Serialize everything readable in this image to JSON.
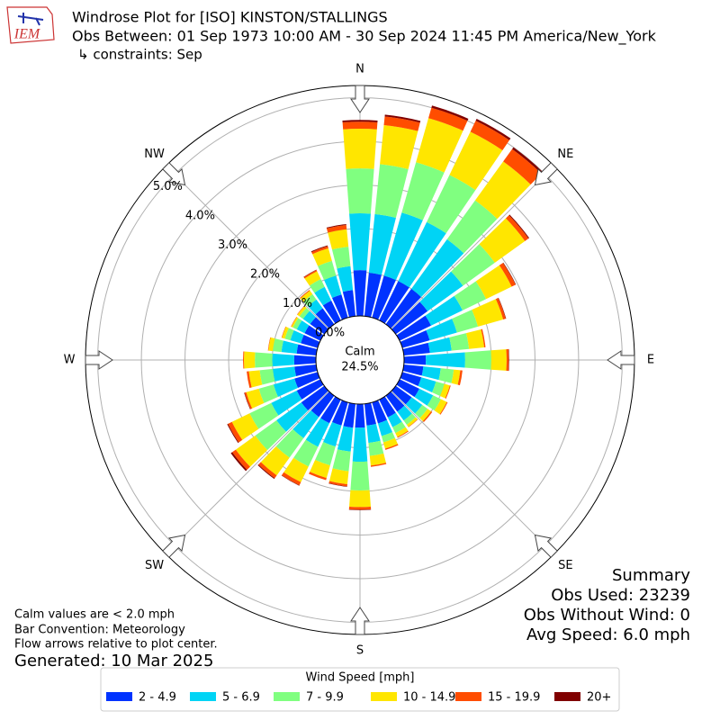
{
  "chart_data": {
    "type": "windrose",
    "logo": "IEM",
    "title": "Windrose Plot for [ISO] KINSTON/STALLINGS",
    "subtitle": "Obs Between: 01 Sep 1973 10:00 AM - 30 Sep 2024 11:45 PM America/New_York",
    "constraints": "↳ constraints: Sep",
    "x": [
      0,
      10,
      20,
      30,
      40,
      50,
      60,
      70,
      80,
      90,
      100,
      110,
      120,
      130,
      140,
      150,
      160,
      170,
      180,
      190,
      200,
      210,
      220,
      230,
      240,
      250,
      260,
      270,
      280,
      290,
      300,
      310,
      320,
      330,
      340,
      350
    ],
    "xticks": [
      {
        "value": 0,
        "label": "N"
      },
      {
        "value": 45,
        "label": "NE"
      },
      {
        "value": 90,
        "label": "E"
      },
      {
        "value": 135,
        "label": "SE"
      },
      {
        "value": 180,
        "label": "S"
      },
      {
        "value": 225,
        "label": "SW"
      },
      {
        "value": 270,
        "label": "W"
      },
      {
        "value": 315,
        "label": "NW"
      }
    ],
    "ylim": [
      0,
      5.28
    ],
    "yticks": [
      {
        "value": 0,
        "label": "0.0%"
      },
      {
        "value": 1,
        "label": "1.0%"
      },
      {
        "value": 2,
        "label": "2.0%"
      },
      {
        "value": 3,
        "label": "3.0%"
      },
      {
        "value": 4,
        "label": "4.0%"
      },
      {
        "value": 5,
        "label": "5.0%"
      }
    ],
    "grid": true,
    "calm": {
      "label": "Calm",
      "value": 24.5,
      "value_label": "24.5%"
    },
    "legend_title": "Wind Speed [mph]",
    "series": [
      {
        "name": "2 - 4.9",
        "color": "#0033ff",
        "values": [
          1.05,
          1.0,
          1.0,
          1.0,
          1.0,
          0.9,
          0.8,
          0.65,
          0.6,
          0.5,
          0.45,
          0.45,
          0.5,
          0.45,
          0.45,
          0.45,
          0.5,
          0.5,
          0.54,
          0.55,
          0.55,
          0.6,
          0.6,
          0.65,
          0.6,
          0.55,
          0.5,
          0.5,
          0.45,
          0.4,
          0.4,
          0.4,
          0.45,
          0.5,
          0.55,
          0.6
        ]
      },
      {
        "name": "5 - 6.9",
        "color": "#00d4f5",
        "values": [
          1.3,
          1.35,
          1.5,
          1.5,
          1.4,
          1.0,
          0.8,
          0.65,
          0.5,
          0.9,
          0.4,
          0.35,
          0.35,
          0.3,
          0.25,
          0.25,
          0.3,
          0.4,
          0.78,
          0.55,
          0.5,
          0.6,
          0.6,
          0.7,
          0.65,
          0.5,
          0.5,
          0.5,
          0.35,
          0.25,
          0.2,
          0.2,
          0.25,
          0.35,
          0.45,
          0.55
        ]
      },
      {
        "name": "7 - 9.9",
        "color": "#80ff80",
        "values": [
          1.03,
          1.15,
          1.2,
          1.2,
          1.1,
          0.9,
          0.6,
          0.5,
          0.4,
          0.6,
          0.3,
          0.2,
          0.2,
          0.15,
          0.12,
          0.15,
          0.15,
          0.3,
          0.66,
          0.45,
          0.45,
          0.5,
          0.55,
          0.6,
          0.55,
          0.35,
          0.3,
          0.4,
          0.2,
          0.13,
          0.1,
          0.1,
          0.15,
          0.2,
          0.35,
          0.45
        ]
      },
      {
        "name": "10 - 14.9",
        "color": "#ffe600",
        "values": [
          0.91,
          0.9,
          1.05,
          1.1,
          1.1,
          0.85,
          0.65,
          0.6,
          0.35,
          0.35,
          0.15,
          0.13,
          0.15,
          0.1,
          0.06,
          0.1,
          0.15,
          0.22,
          0.38,
          0.3,
          0.3,
          0.4,
          0.5,
          0.55,
          0.45,
          0.3,
          0.25,
          0.25,
          0.1,
          0.07,
          0.04,
          0.06,
          0.1,
          0.2,
          0.3,
          0.4
        ]
      },
      {
        "name": "15 - 19.9",
        "color": "#ff4d00",
        "values": [
          0.16,
          0.2,
          0.25,
          0.28,
          0.35,
          0.1,
          0.1,
          0.06,
          0.03,
          0.05,
          0.05,
          0.02,
          0.02,
          0.03,
          0.01,
          0.02,
          0.03,
          0.03,
          0.06,
          0.05,
          0.05,
          0.08,
          0.08,
          0.1,
          0.1,
          0.04,
          0.05,
          0.02,
          0.01,
          0.01,
          0.01,
          0.01,
          0.02,
          0.03,
          0.05,
          0.1
        ]
      },
      {
        "name": "20+",
        "color": "#800000",
        "values": [
          0.04,
          0.04,
          0.05,
          0.05,
          0.05,
          0.02,
          0.01,
          0.01,
          0,
          0.01,
          0,
          0,
          0,
          0,
          0,
          0,
          0,
          0,
          0.01,
          0.01,
          0,
          0.01,
          0.02,
          0.04,
          0.02,
          0.01,
          0,
          0,
          0,
          0,
          0,
          0,
          0,
          0.01,
          0.02,
          0.02
        ]
      }
    ],
    "notes": [
      "Calm values are < 2.0 mph",
      "Bar Convention: Meteorology",
      "Flow arrows relative to plot center."
    ],
    "generated": "Generated: 10 Mar 2025",
    "summary": [
      "Summary",
      "Obs Used: 23239",
      "Obs Without Wind: 0",
      "Avg Speed: 6.0 mph"
    ]
  }
}
